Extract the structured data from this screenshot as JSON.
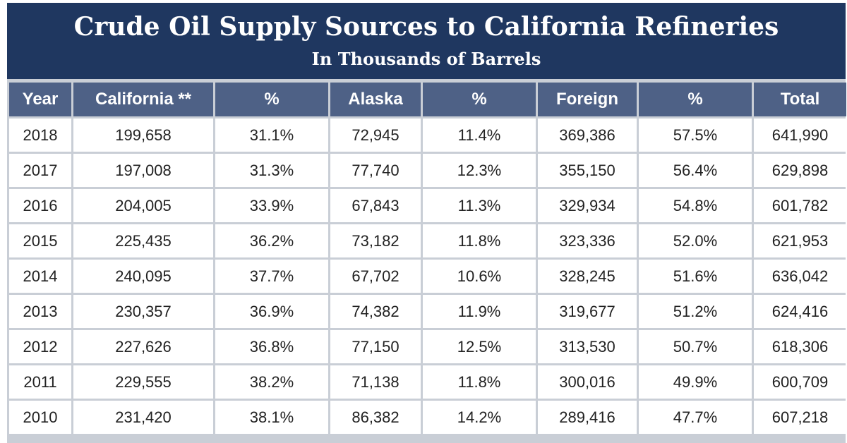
{
  "chart_data": {
    "type": "table",
    "title": "Crude Oil Supply Sources to California Refineries",
    "subtitle": "In Thousands of Barrels",
    "columns": [
      "Year",
      "California **",
      "%",
      "Alaska",
      "%",
      "Foreign",
      "%",
      "Total"
    ],
    "rows": [
      [
        "2018",
        "199,658",
        "31.1%",
        "72,945",
        "11.4%",
        "369,386",
        "57.5%",
        "641,990"
      ],
      [
        "2017",
        "197,008",
        "31.3%",
        "77,740",
        "12.3%",
        "355,150",
        "56.4%",
        "629,898"
      ],
      [
        "2016",
        "204,005",
        "33.9%",
        "67,843",
        "11.3%",
        "329,934",
        "54.8%",
        "601,782"
      ],
      [
        "2015",
        "225,435",
        "36.2%",
        "73,182",
        "11.8%",
        "323,336",
        "52.0%",
        "621,953"
      ],
      [
        "2014",
        "240,095",
        "37.7%",
        "67,702",
        "10.6%",
        "328,245",
        "51.6%",
        "636,042"
      ],
      [
        "2013",
        "230,357",
        "36.9%",
        "74,382",
        "11.9%",
        "319,677",
        "51.2%",
        "624,416"
      ],
      [
        "2012",
        "227,626",
        "36.8%",
        "77,150",
        "12.5%",
        "313,530",
        "50.7%",
        "618,306"
      ],
      [
        "2011",
        "229,555",
        "38.2%",
        "71,138",
        "11.8%",
        "300,016",
        "49.9%",
        "600,709"
      ],
      [
        "2010",
        "231,420",
        "38.1%",
        "86,382",
        "14.2%",
        "289,416",
        "47.7%",
        "607,218"
      ]
    ]
  },
  "colors": {
    "title_background": "#1f3760",
    "header_background": "#4e6186",
    "grid": "#c9ced6",
    "cell_background": "#ffffff",
    "text": "#222222"
  }
}
